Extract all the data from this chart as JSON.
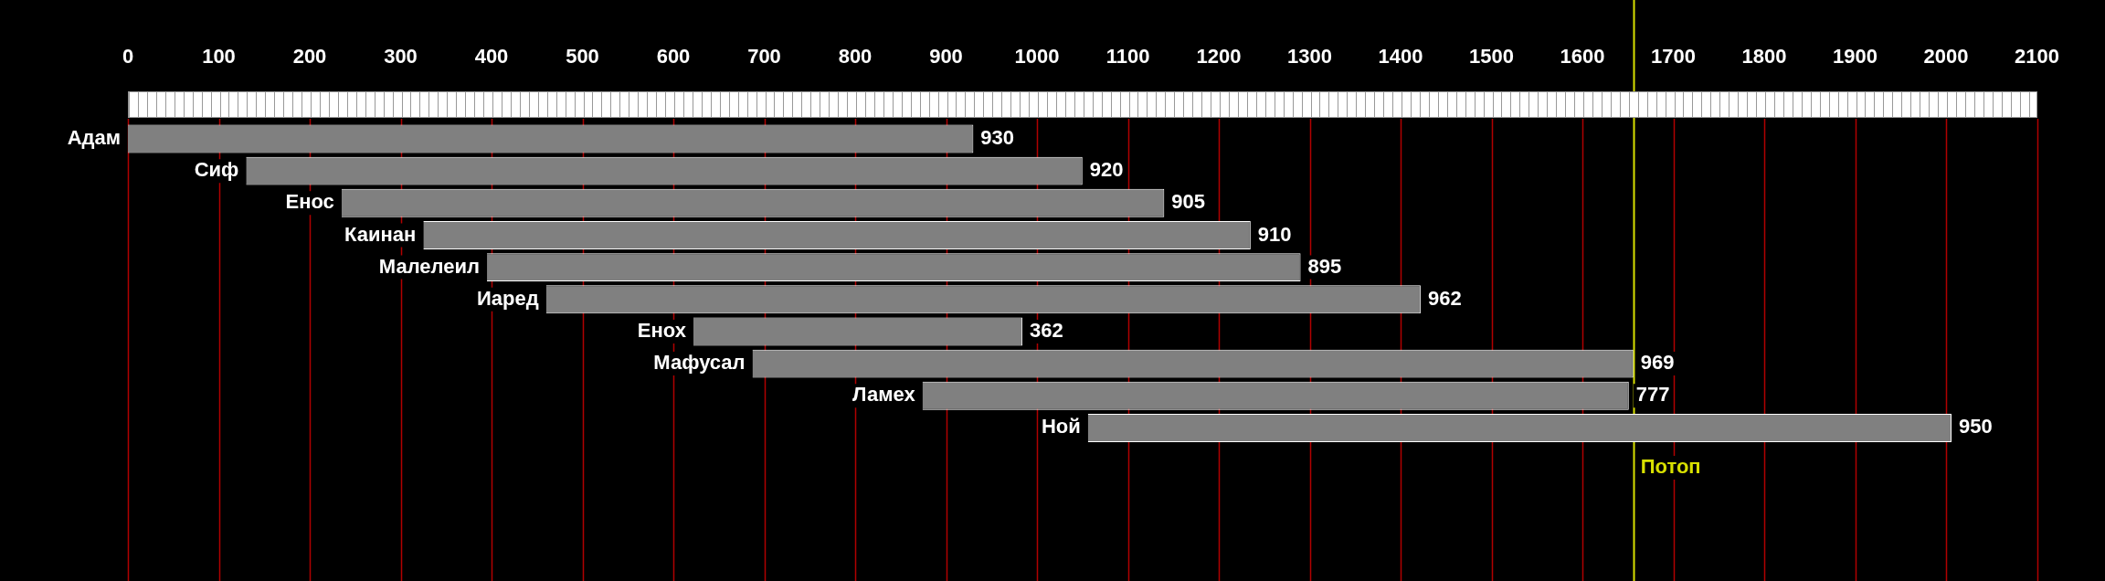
{
  "chart_data": {
    "type": "bar",
    "orientation": "horizontal",
    "categories": [
      "Адам",
      "Сиф",
      "Енос",
      "Каинан",
      "Малелеил",
      "Иаред",
      "Енох",
      "Мафусал",
      "Ламех",
      "Ной"
    ],
    "base": [
      0,
      130,
      235,
      325,
      395,
      460,
      622,
      687,
      874,
      1056
    ],
    "values": [
      930,
      920,
      905,
      910,
      895,
      962,
      362,
      969,
      777,
      950
    ],
    "color": "#808080",
    "xlim": [
      0,
      2100
    ],
    "xticks": [
      0,
      100,
      200,
      300,
      400,
      500,
      600,
      700,
      800,
      900,
      1000,
      1100,
      1200,
      1300,
      1400,
      1500,
      1600,
      1700,
      1800,
      1900,
      2000,
      2100
    ],
    "grid": "x",
    "data_labels": true,
    "ref_lines": [
      {
        "axis": "x",
        "value": 1656,
        "label": "Потоп",
        "color": "#d8e000"
      }
    ]
  }
}
